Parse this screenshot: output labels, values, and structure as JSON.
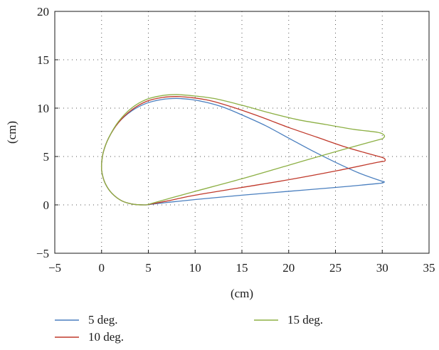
{
  "chart_data": {
    "type": "line",
    "xlabel": "(cm)",
    "ylabel": "(cm)",
    "xlim": [
      -5,
      35
    ],
    "ylim": [
      -5,
      20
    ],
    "xticks": [
      -5,
      0,
      5,
      10,
      15,
      20,
      25,
      30,
      35
    ],
    "yticks": [
      -5,
      0,
      5,
      10,
      15,
      20
    ],
    "xtick_labels": [
      "−5",
      "0",
      "5",
      "10",
      "15",
      "20",
      "25",
      "30",
      "35"
    ],
    "ytick_labels": [
      "−5",
      "0",
      "5",
      "10",
      "15",
      "20"
    ],
    "grid": true,
    "legend_position": "bottom",
    "series": [
      {
        "name": "5 deg.",
        "color": "#4a7fbf",
        "x": [
          4.8,
          3.5,
          2.2,
          1.1,
          0.4,
          0.05,
          0.0,
          0.2,
          0.8,
          1.8,
          3.2,
          4.8,
          6.5,
          8.0,
          9.5,
          11.2,
          13.0,
          15.0,
          17.5,
          20.0,
          22.5,
          25.0,
          27.5,
          29.8,
          30.2,
          30.1,
          29.5,
          25.0,
          20.0,
          15.0,
          10.0,
          7.0,
          4.8
        ],
        "y": [
          0.0,
          0.05,
          0.4,
          1.2,
          2.2,
          3.3,
          4.2,
          5.5,
          7.0,
          8.5,
          9.7,
          10.5,
          10.9,
          11.0,
          10.9,
          10.6,
          10.1,
          9.3,
          8.2,
          6.9,
          5.6,
          4.4,
          3.3,
          2.5,
          2.4,
          2.3,
          2.2,
          1.8,
          1.4,
          1.0,
          0.55,
          0.25,
          0.0
        ]
      },
      {
        "name": "10 deg.",
        "color": "#c0392b",
        "x": [
          4.8,
          3.5,
          2.2,
          1.1,
          0.4,
          0.05,
          0.0,
          0.2,
          0.8,
          1.8,
          3.2,
          4.8,
          6.5,
          8.0,
          9.5,
          11.5,
          14.0,
          17.0,
          20.0,
          23.0,
          26.0,
          28.5,
          30.0,
          30.3,
          30.2,
          29.5,
          25.0,
          20.0,
          15.0,
          10.0,
          7.0,
          4.8
        ],
        "y": [
          0.0,
          0.05,
          0.4,
          1.2,
          2.2,
          3.3,
          4.2,
          5.5,
          7.0,
          8.5,
          9.8,
          10.7,
          11.1,
          11.2,
          11.1,
          10.8,
          10.1,
          9.1,
          8.0,
          7.0,
          6.0,
          5.3,
          4.9,
          4.7,
          4.5,
          4.4,
          3.5,
          2.6,
          1.8,
          1.0,
          0.4,
          0.0
        ]
      },
      {
        "name": "15 deg.",
        "color": "#8db045",
        "x": [
          4.8,
          3.5,
          2.2,
          1.1,
          0.4,
          0.05,
          0.0,
          0.2,
          0.8,
          1.8,
          3.2,
          4.8,
          6.5,
          8.0,
          9.5,
          12.0,
          15.0,
          18.0,
          21.0,
          24.0,
          27.0,
          29.5,
          30.2,
          30.1,
          29.5,
          25.0,
          20.0,
          15.0,
          10.0,
          7.0,
          4.8
        ],
        "y": [
          0.0,
          0.05,
          0.4,
          1.2,
          2.2,
          3.3,
          4.2,
          5.5,
          7.0,
          8.6,
          10.0,
          10.9,
          11.3,
          11.4,
          11.3,
          11.0,
          10.3,
          9.5,
          8.8,
          8.3,
          7.8,
          7.5,
          7.2,
          6.9,
          6.7,
          5.5,
          4.1,
          2.7,
          1.4,
          0.6,
          0.0
        ]
      }
    ]
  }
}
